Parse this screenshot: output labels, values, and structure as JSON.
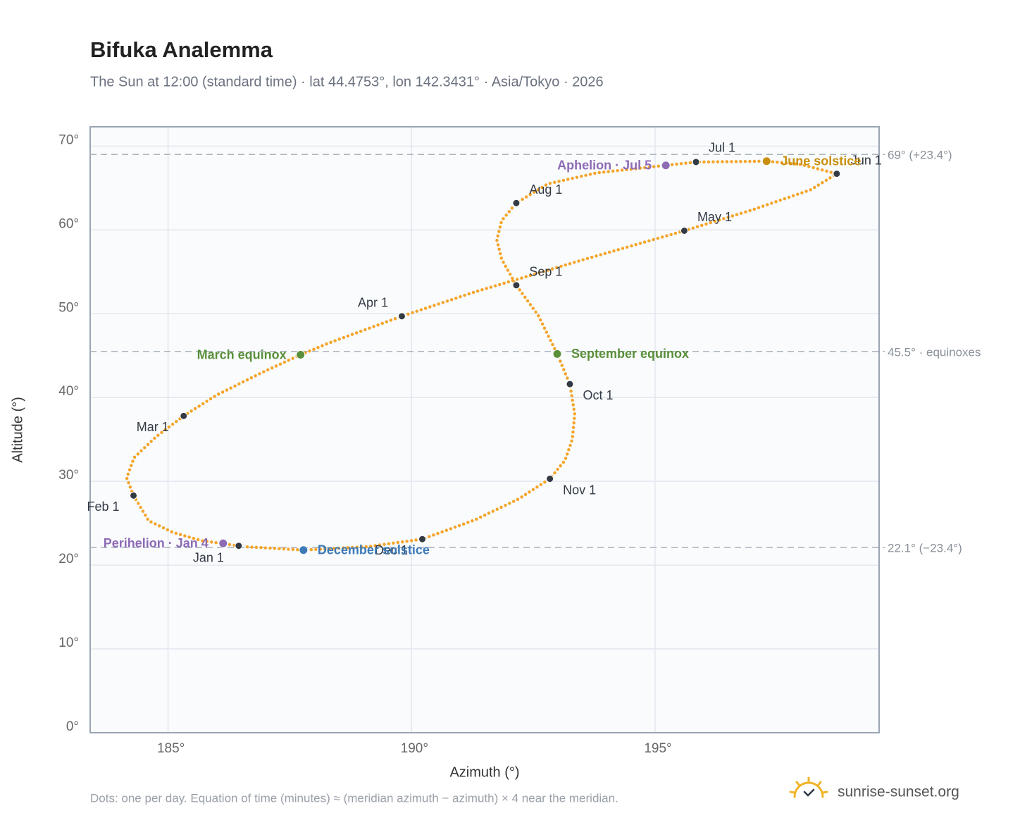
{
  "chart_data": {
    "type": "scatter",
    "title": "Bifuka Analemma",
    "subtitle": "The Sun at 12:00 (standard time) · lat 44.4753°, lon 142.3431° · Asia/Tokyo · 2026",
    "xlabel": "Azimuth (°)",
    "ylabel": "Altitude (°)",
    "xlim": [
      183.4,
      199.6
    ],
    "ylim": [
      0,
      72.3
    ],
    "xticks": [
      {
        "value": 185,
        "label": "185°"
      },
      {
        "value": 190,
        "label": "190°"
      },
      {
        "value": 195,
        "label": "195°"
      }
    ],
    "yticks": [
      {
        "value": 0,
        "label": "0°"
      },
      {
        "value": 10,
        "label": "10°"
      },
      {
        "value": 20,
        "label": "20°"
      },
      {
        "value": 30,
        "label": "30°"
      },
      {
        "value": 40,
        "label": "40°"
      },
      {
        "value": 50,
        "label": "50°"
      },
      {
        "value": 60,
        "label": "60°"
      },
      {
        "value": 70,
        "label": "70°"
      }
    ],
    "grid": true,
    "reference_lines": [
      {
        "value": 69,
        "label": "69° (+23.4°)"
      },
      {
        "value": 45.5,
        "label": "45.5° · equinoxes"
      },
      {
        "value": 22.1,
        "label": "22.1° (−23.4°)"
      }
    ],
    "curve": {
      "color": "#f4a52a",
      "x": [
        186.45,
        185.7,
        185.1,
        184.6,
        184.29,
        184.15,
        184.3,
        184.75,
        185.32,
        186.0,
        186.9,
        187.72,
        188.3,
        189.8,
        191.3,
        193.5,
        195.6,
        197.0,
        198.2,
        198.73,
        198.0,
        197.29,
        195.84,
        195.22,
        193.8,
        192.8,
        192.15,
        191.85,
        191.75,
        191.85,
        192.15,
        192.6,
        192.99,
        193.25,
        193.35,
        193.3,
        193.15,
        192.84,
        192.2,
        191.3,
        190.22,
        189.1,
        187.78,
        186.55
      ],
      "values": [
        22.3,
        22.9,
        23.9,
        25.3,
        28.3,
        30.4,
        32.8,
        35.3,
        37.8,
        40.3,
        42.9,
        45.1,
        46.5,
        49.7,
        52.6,
        56.4,
        59.9,
        62.4,
        64.8,
        66.7,
        67.8,
        68.2,
        68.1,
        67.7,
        66.8,
        65.5,
        63.2,
        61.1,
        58.8,
        56.5,
        53.4,
        49.8,
        45.2,
        41.6,
        38.0,
        35.0,
        32.5,
        30.3,
        27.9,
        25.4,
        23.1,
        22.2,
        21.8,
        22.2
      ]
    },
    "points": [
      {
        "label": "Jan 1",
        "x": 186.45,
        "y": 22.3,
        "color": "#333a44"
      },
      {
        "label": "Feb 1",
        "x": 184.29,
        "y": 28.3,
        "color": "#333a44"
      },
      {
        "label": "Mar 1",
        "x": 185.32,
        "y": 37.8,
        "color": "#333a44"
      },
      {
        "label": "Apr 1",
        "x": 189.8,
        "y": 49.7,
        "color": "#333a44"
      },
      {
        "label": "May 1",
        "x": 195.6,
        "y": 59.9,
        "color": "#333a44"
      },
      {
        "label": "Jun 1",
        "x": 198.73,
        "y": 66.7,
        "color": "#333a44"
      },
      {
        "label": "Jul 1",
        "x": 195.84,
        "y": 68.1,
        "color": "#333a44"
      },
      {
        "label": "Aug 1",
        "x": 192.15,
        "y": 63.2,
        "color": "#333a44"
      },
      {
        "label": "Sep 1",
        "x": 192.15,
        "y": 53.4,
        "color": "#333a44"
      },
      {
        "label": "Oct 1",
        "x": 193.25,
        "y": 41.6,
        "color": "#333a44"
      },
      {
        "label": "Nov 1",
        "x": 192.84,
        "y": 30.3,
        "color": "#333a44"
      },
      {
        "label": "Dec 1",
        "x": 190.22,
        "y": 23.1,
        "color": "#333a44"
      },
      {
        "label": "Perihelion · Jan 4",
        "x": 186.13,
        "y": 22.6,
        "color": "#8e6bb5"
      },
      {
        "label": "March equinox",
        "x": 187.72,
        "y": 45.1,
        "color": "#5a8f3a"
      },
      {
        "label": "June solstice",
        "x": 197.29,
        "y": 68.2,
        "color": "#c9900f"
      },
      {
        "label": "Aphelion · Jul 5",
        "x": 195.22,
        "y": 67.7,
        "color": "#8e6bb5"
      },
      {
        "label": "September equinox",
        "x": 192.99,
        "y": 45.2,
        "color": "#5a8f3a"
      },
      {
        "label": "December solstice",
        "x": 187.78,
        "y": 21.8,
        "color": "#3d7ab8"
      }
    ],
    "footnote": "Dots: one per day. Equation of time (minutes) ≈ (meridian azimuth − azimuth) × 4 near the meridian.",
    "source": "sunrise-sunset.org"
  }
}
